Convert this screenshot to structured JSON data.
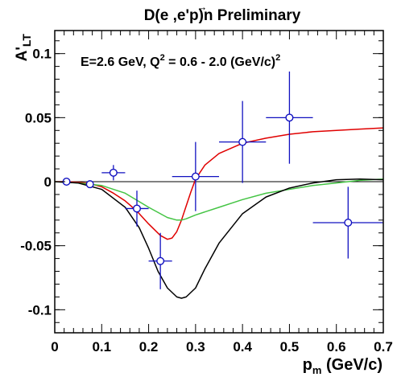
{
  "chart_data": {
    "type": "scatter",
    "title": {
      "main": "D(e ,e'p)n Preliminary",
      "arrow_glyph": "→"
    },
    "annotation": {
      "prefix": "E=2.6 GeV, Q",
      "exp": "2",
      "middle": " = 0.6 - 2.0 (GeV/c)",
      "exp2": "2"
    },
    "ylabel": {
      "main": "A",
      "prime": "'",
      "sub": "LT"
    },
    "xlabel": {
      "main": "p",
      "sub": "m",
      "rest": " (GeV/c)"
    },
    "xlim": [
      0,
      0.7
    ],
    "ylim": [
      -0.118,
      0.118
    ],
    "xticks": [
      0,
      0.1,
      0.2,
      0.3,
      0.4,
      0.5,
      0.6,
      0.7
    ],
    "xtick_labels": [
      "0",
      "0.1",
      "0.2",
      "0.3",
      "0.4",
      "0.5",
      "0.6",
      "0.7"
    ],
    "yticks": [
      -0.1,
      -0.05,
      0,
      0.05,
      0.1
    ],
    "ytick_labels": [
      "-0.1",
      "-0.05",
      "0",
      "0.05",
      "0.1"
    ],
    "zero_line": true,
    "grid": false,
    "colors": {
      "points": "#1010c0",
      "red": "#e00000",
      "green": "#44c444",
      "black": "#000000"
    },
    "points": [
      {
        "x": 0.025,
        "y": 0.0,
        "xerr": 0.0,
        "yerr": 0.0
      },
      {
        "x": 0.075,
        "y": -0.002,
        "xerr": 0.0,
        "yerr": 0.0
      },
      {
        "x": 0.125,
        "y": 0.007,
        "xerr": 0.025,
        "yerr": 0.006
      },
      {
        "x": 0.175,
        "y": -0.021,
        "xerr": 0.025,
        "yerr": 0.014
      },
      {
        "x": 0.225,
        "y": -0.062,
        "xerr": 0.025,
        "yerr": 0.022
      },
      {
        "x": 0.3,
        "y": 0.004,
        "xerr": 0.05,
        "yerr": 0.027
      },
      {
        "x": 0.4,
        "y": 0.031,
        "xerr": 0.05,
        "yerr": 0.032
      },
      {
        "x": 0.5,
        "y": 0.05,
        "xerr": 0.05,
        "yerr": 0.036
      },
      {
        "x": 0.625,
        "y": -0.032,
        "xerr": 0.075,
        "yerr": 0.028
      }
    ],
    "series": [
      {
        "color_key": "red",
        "x": [
          0.0,
          0.025,
          0.05,
          0.075,
          0.1,
          0.125,
          0.15,
          0.175,
          0.2,
          0.225,
          0.24,
          0.25,
          0.26,
          0.27,
          0.28,
          0.29,
          0.3,
          0.32,
          0.35,
          0.4,
          0.45,
          0.5,
          0.55,
          0.6,
          0.65,
          0.7
        ],
        "y": [
          0.0,
          0.0,
          -0.0005,
          -0.0015,
          -0.004,
          -0.009,
          -0.015,
          -0.023,
          -0.033,
          -0.042,
          -0.045,
          -0.044,
          -0.039,
          -0.03,
          -0.019,
          -0.008,
          0.002,
          0.013,
          0.022,
          0.03,
          0.034,
          0.037,
          0.039,
          0.04,
          0.041,
          0.042
        ]
      },
      {
        "color_key": "green",
        "x": [
          0.0,
          0.05,
          0.1,
          0.15,
          0.2,
          0.24,
          0.26,
          0.27,
          0.28,
          0.3,
          0.35,
          0.4,
          0.45,
          0.5,
          0.55,
          0.6,
          0.65,
          0.7
        ],
        "y": [
          0.0,
          -0.001,
          -0.003,
          -0.009,
          -0.02,
          -0.028,
          -0.03,
          -0.03,
          -0.029,
          -0.026,
          -0.02,
          -0.014,
          -0.009,
          -0.006,
          -0.003,
          -0.001,
          0.001,
          0.002
        ]
      },
      {
        "color_key": "black",
        "x": [
          0.0,
          0.05,
          0.1,
          0.15,
          0.18,
          0.2,
          0.22,
          0.24,
          0.26,
          0.27,
          0.28,
          0.3,
          0.32,
          0.35,
          0.4,
          0.45,
          0.5,
          0.55,
          0.6,
          0.65,
          0.7
        ],
        "y": [
          0.0,
          -0.001,
          -0.006,
          -0.02,
          -0.036,
          -0.052,
          -0.07,
          -0.083,
          -0.09,
          -0.091,
          -0.09,
          -0.083,
          -0.068,
          -0.048,
          -0.025,
          -0.012,
          -0.005,
          -0.001,
          0.0015,
          0.002,
          0.0015
        ]
      }
    ]
  }
}
